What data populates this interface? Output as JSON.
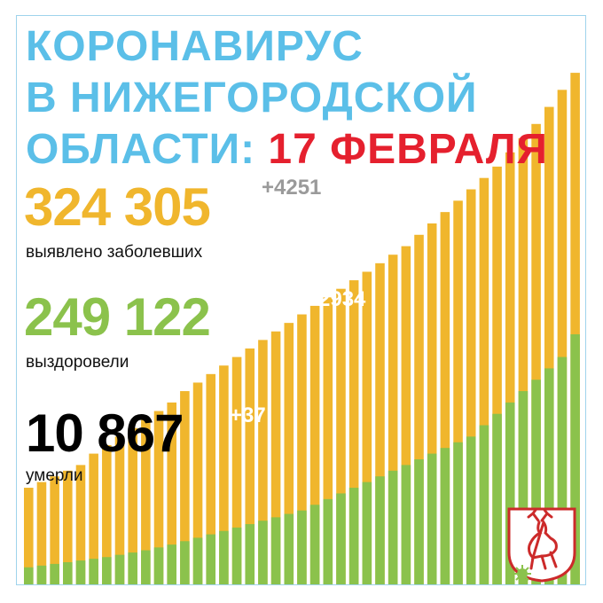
{
  "title_line1": "КОРОНАВИРУС",
  "title_line2": "В НИЖЕГОРОДСКОЙ",
  "title_line3": "ОБЛАСТИ:",
  "date": "17 ФЕВРАЛЯ",
  "stats": {
    "cases": {
      "value": "324 305",
      "delta": "+4251",
      "label": "выявлено заболевших"
    },
    "recovered": {
      "value": "249 122",
      "delta": "+2934",
      "label": "выздоровели"
    },
    "deaths": {
      "value": "10 867",
      "delta": "+37",
      "label": "умерли"
    }
  },
  "colors": {
    "title": "#5bbfe8",
    "date": "#e5202e",
    "cases": "#f0b62d",
    "recovered": "#8bc24c",
    "deaths": "#000000",
    "border": "#9fd3ec"
  },
  "chart_data": {
    "type": "bar",
    "stacked": true,
    "n_bars": 43,
    "series": [
      {
        "key": "total",
        "color": "#f0b62d",
        "values": [
          0.17,
          0.18,
          0.19,
          0.2,
          0.21,
          0.23,
          0.245,
          0.26,
          0.275,
          0.29,
          0.305,
          0.32,
          0.34,
          0.355,
          0.37,
          0.385,
          0.4,
          0.415,
          0.43,
          0.445,
          0.46,
          0.475,
          0.49,
          0.505,
          0.52,
          0.535,
          0.55,
          0.565,
          0.58,
          0.595,
          0.615,
          0.635,
          0.655,
          0.675,
          0.695,
          0.715,
          0.735,
          0.76,
          0.785,
          0.81,
          0.84,
          0.87,
          0.9
        ]
      },
      {
        "key": "recovered",
        "color": "#8bc24c",
        "values": [
          0.03,
          0.033,
          0.036,
          0.039,
          0.042,
          0.045,
          0.048,
          0.052,
          0.056,
          0.06,
          0.065,
          0.07,
          0.076,
          0.082,
          0.088,
          0.094,
          0.1,
          0.106,
          0.112,
          0.118,
          0.124,
          0.13,
          0.14,
          0.15,
          0.16,
          0.17,
          0.18,
          0.19,
          0.2,
          0.21,
          0.22,
          0.23,
          0.24,
          0.25,
          0.26,
          0.28,
          0.3,
          0.32,
          0.34,
          0.36,
          0.38,
          0.4,
          0.44
        ]
      }
    ]
  }
}
